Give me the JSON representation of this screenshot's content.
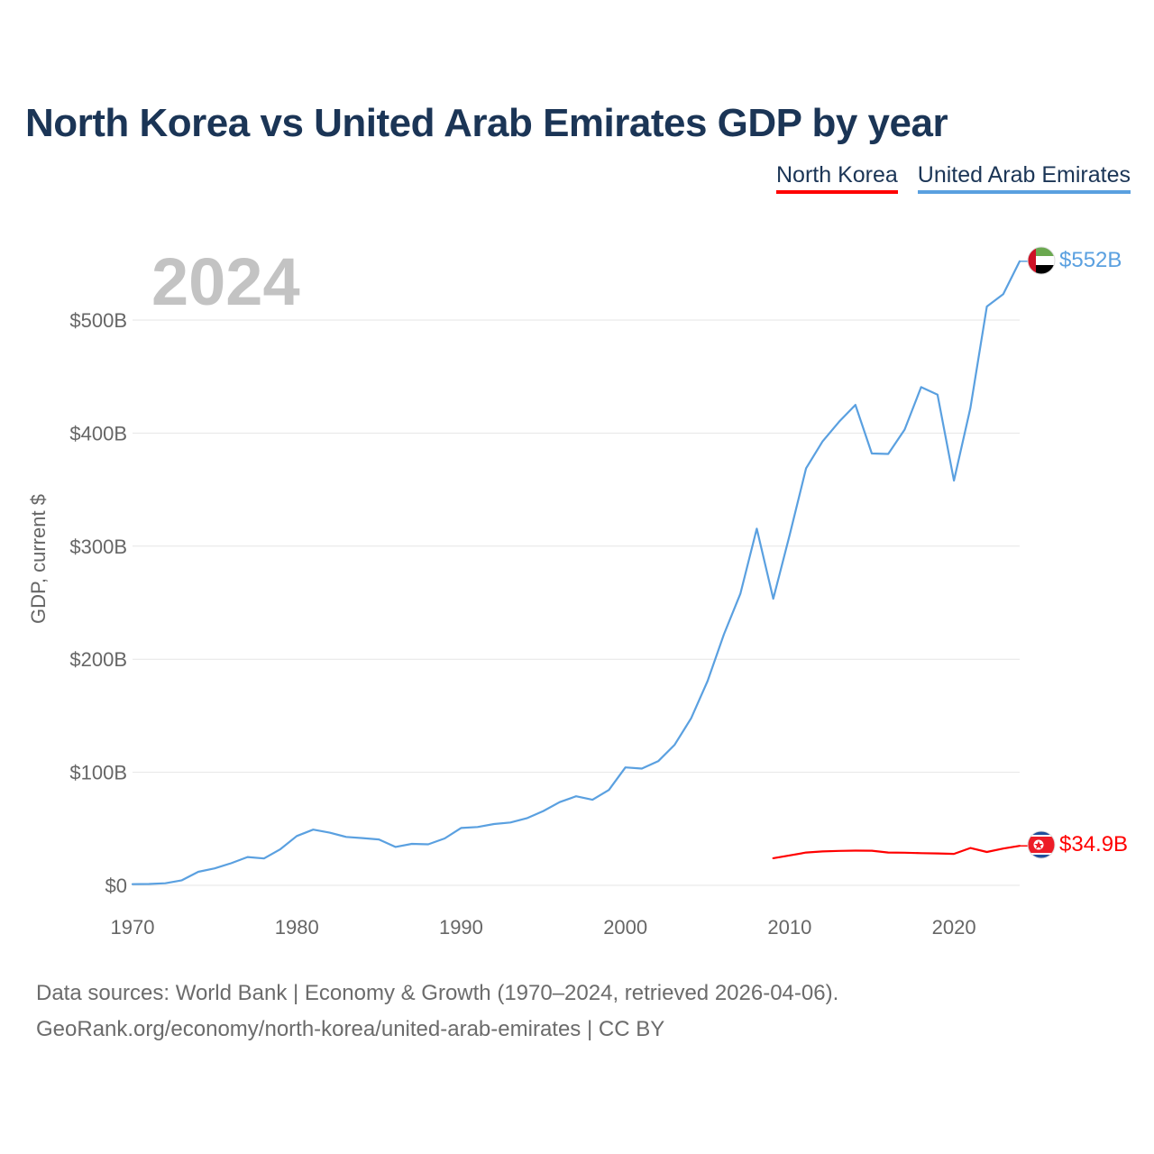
{
  "chart_data": {
    "type": "line",
    "title": "North Korea vs United Arab Emirates GDP by year",
    "ylabel": "GDP, current $",
    "xlabel": "",
    "current_year": "2024",
    "xlim": [
      1970,
      2024
    ],
    "ylim": [
      0,
      500
    ],
    "y_unit": "billions USD",
    "x_ticks": [
      {
        "value": 1970,
        "label": "1970"
      },
      {
        "value": 1980,
        "label": "1980"
      },
      {
        "value": 1990,
        "label": "1990"
      },
      {
        "value": 2000,
        "label": "2000"
      },
      {
        "value": 2010,
        "label": "2010"
      },
      {
        "value": 2020,
        "label": "2020"
      }
    ],
    "y_ticks": [
      {
        "value": 0,
        "label": "$0"
      },
      {
        "value": 100,
        "label": "$100B"
      },
      {
        "value": 200,
        "label": "$200B"
      },
      {
        "value": 300,
        "label": "$300B"
      },
      {
        "value": 400,
        "label": "$400B"
      },
      {
        "value": 500,
        "label": "$500B"
      }
    ],
    "grid": true,
    "legend_position": "top-right",
    "series": [
      {
        "name": "North Korea",
        "color": "#ff0000",
        "end_label": "$34.9B",
        "flag_icon": "north-korea-flag-icon",
        "x": [
          2009,
          2010,
          2011,
          2012,
          2013,
          2014,
          2015,
          2016,
          2017,
          2018,
          2019,
          2020,
          2021,
          2022,
          2023,
          2024
        ],
        "values": [
          24.0,
          26.5,
          29.0,
          30.0,
          30.5,
          30.7,
          30.6,
          29.0,
          28.9,
          28.5,
          28.2,
          27.8,
          33.0,
          29.5,
          32.5,
          34.9
        ]
      },
      {
        "name": "United Arab Emirates",
        "color": "#5aa0e0",
        "end_label": "$552B",
        "flag_icon": "uae-flag-icon",
        "x": [
          1970,
          1971,
          1972,
          1973,
          1974,
          1975,
          1976,
          1977,
          1978,
          1979,
          1980,
          1981,
          1982,
          1983,
          1984,
          1985,
          1986,
          1987,
          1988,
          1989,
          1990,
          1991,
          1992,
          1993,
          1994,
          1995,
          1996,
          1997,
          1998,
          1999,
          2000,
          2001,
          2002,
          2003,
          2004,
          2005,
          2006,
          2007,
          2008,
          2009,
          2010,
          2011,
          2012,
          2013,
          2014,
          2015,
          2016,
          2017,
          2018,
          2019,
          2020,
          2021,
          2022,
          2023,
          2024
        ],
        "values": [
          1.0,
          1.2,
          1.8,
          4.5,
          12.0,
          15.0,
          19.5,
          25.0,
          23.8,
          32.0,
          43.6,
          49.3,
          46.6,
          42.8,
          41.8,
          40.6,
          34.0,
          36.7,
          36.3,
          41.5,
          50.7,
          51.6,
          54.2,
          55.6,
          59.3,
          65.7,
          73.6,
          78.8,
          75.7,
          84.4,
          104.3,
          103.3,
          109.8,
          124.3,
          147.8,
          180.6,
          222.1,
          257.9,
          315.5,
          253.5,
          310.0,
          368.9,
          392.6,
          410.0,
          425.0,
          382.0,
          381.6,
          403.1,
          440.7,
          434.0,
          358.0,
          422.0,
          512.0,
          523.0,
          552.0
        ]
      }
    ]
  },
  "footer": {
    "line1": "Data sources: World Bank | Economy & Growth (1970–2024, retrieved 2026-04-06).",
    "line2": "GeoRank.org/economy/north-korea/united-arab-emirates | CC BY"
  }
}
